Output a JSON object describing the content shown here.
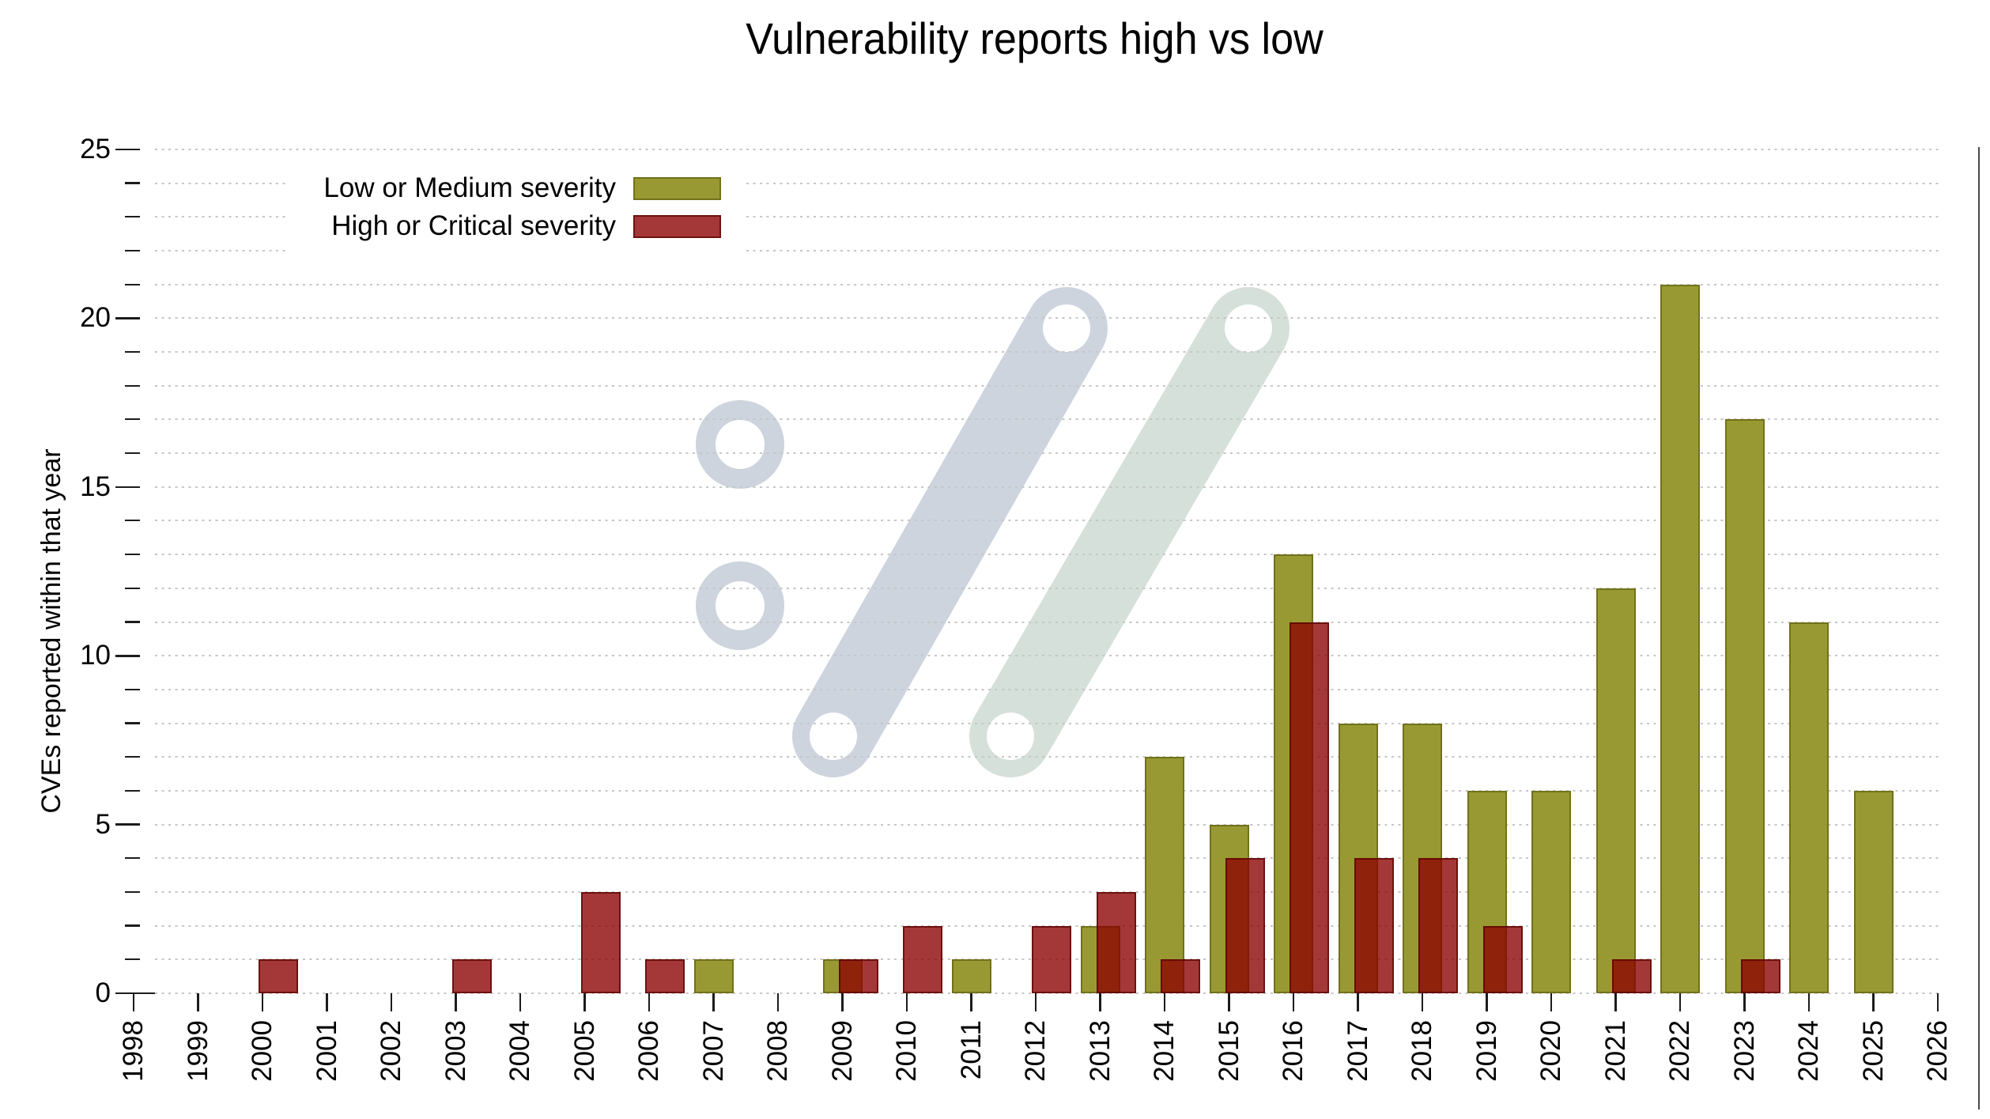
{
  "title": "Vulnerability reports high vs low",
  "y_axis": {
    "label": "CVEs reported within that year",
    "major_ticks": [
      0,
      5,
      10,
      15,
      20,
      25
    ],
    "minor_tick_step": 1,
    "max": 25
  },
  "x_axis": {
    "first_year": "1998",
    "last_year": "2026"
  },
  "legend": {
    "position": "top-left",
    "items": [
      {
        "label": "Low or Medium severity",
        "color": "#999933"
      },
      {
        "label": "High or Critical severity",
        "color": "rgba(139,0,0,0.78)"
      }
    ]
  },
  "colors": {
    "low_fill": "#999933",
    "low_border": "#71711c",
    "high_fill": "rgba(139,0,0,0.78)",
    "high_border": "rgba(88,4,0,0.72)",
    "gridline": "#c6c6c6",
    "tick": "#1c1c1c",
    "watermark_blue": "#cdd4de",
    "watermark_teal": "#d5e0da"
  },
  "chart_data": {
    "type": "bar",
    "title": "Vulnerability reports high vs low",
    "xlabel": "",
    "ylabel": "CVEs reported within that year",
    "ylim": [
      0,
      25
    ],
    "grid": "dotted horizontal line at every integer",
    "legend_position": "top-left inside plot",
    "bar_style": "overlapping pairs; high/critical bar drawn semi-transparent, offset right over low/medium bar",
    "categories": [
      "1998",
      "1999",
      "2000",
      "2001",
      "2002",
      "2003",
      "2004",
      "2005",
      "2006",
      "2007",
      "2008",
      "2009",
      "2010",
      "2011",
      "2012",
      "2013",
      "2014",
      "2015",
      "2016",
      "2017",
      "2018",
      "2019",
      "2020",
      "2021",
      "2022",
      "2023",
      "2024",
      "2025",
      "2026"
    ],
    "series": [
      {
        "name": "Low or Medium severity",
        "color": "#999933",
        "values": [
          0,
          0,
          0,
          0,
          0,
          0,
          0,
          0,
          0,
          1,
          0,
          1,
          0,
          1,
          0,
          2,
          7,
          5,
          13,
          8,
          8,
          6,
          6,
          12,
          21,
          17,
          11,
          6,
          0
        ]
      },
      {
        "name": "High or Critical severity",
        "color": "rgba(139,0,0,0.78)",
        "values": [
          0,
          0,
          1,
          0,
          0,
          1,
          0,
          3,
          1,
          0,
          0,
          1,
          2,
          0,
          2,
          3,
          1,
          4,
          11,
          4,
          4,
          2,
          0,
          1,
          0,
          1,
          0,
          0,
          0
        ]
      }
    ]
  }
}
